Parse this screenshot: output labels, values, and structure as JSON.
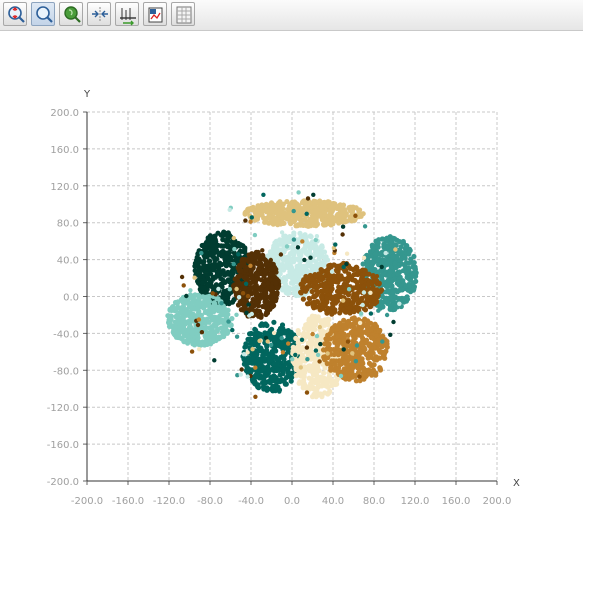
{
  "toolbar": {
    "buttons": [
      {
        "name": "zoom-in-out-icon",
        "active": false
      },
      {
        "name": "zoom-icon",
        "active": true
      },
      {
        "name": "pan-icon",
        "active": false
      },
      {
        "name": "fit-icon",
        "active": false
      },
      {
        "name": "axis-settings-icon",
        "active": false
      },
      {
        "name": "export-icon",
        "active": false
      },
      {
        "name": "grid-toggle-icon",
        "active": false
      }
    ]
  },
  "chart_data": {
    "type": "scatter",
    "xlabel": "X",
    "ylabel": "Y",
    "xlim": [
      -200,
      200
    ],
    "ylim": [
      -200,
      200
    ],
    "xticks": [
      "-200.0",
      "-160.0",
      "-120.0",
      "-80.0",
      "-40.0",
      "0.0",
      "40.0",
      "80.0",
      "120.0",
      "160.0",
      "200.0"
    ],
    "yticks": [
      "200.0",
      "160.0",
      "120.0",
      "80.0",
      "40.0",
      "0.0",
      "-40.0",
      "-80.0",
      "-120.0",
      "-160.0",
      "-200.0"
    ],
    "grid": true,
    "legend": "none",
    "series": [
      {
        "color": "#dfc27d",
        "center": [
          12,
          90
        ],
        "spread": [
          58,
          14
        ],
        "count": 420
      },
      {
        "color": "#c7eae5",
        "center": [
          5,
          35
        ],
        "spread": [
          30,
          34
        ],
        "count": 380
      },
      {
        "color": "#35978f",
        "center": [
          95,
          25
        ],
        "spread": [
          27,
          40
        ],
        "count": 380
      },
      {
        "color": "#003c30",
        "center": [
          -68,
          30
        ],
        "spread": [
          27,
          40
        ],
        "count": 380
      },
      {
        "color": "#543005",
        "center": [
          -35,
          12
        ],
        "spread": [
          22,
          36
        ],
        "count": 340
      },
      {
        "color": "#8c510a",
        "center": [
          48,
          8
        ],
        "spread": [
          40,
          28
        ],
        "count": 380
      },
      {
        "color": "#80cdc1",
        "center": [
          -90,
          -25
        ],
        "spread": [
          32,
          28
        ],
        "count": 360
      },
      {
        "color": "#01665e",
        "center": [
          -20,
          -65
        ],
        "spread": [
          28,
          38
        ],
        "count": 380
      },
      {
        "color": "#f6e8c3",
        "center": [
          25,
          -65
        ],
        "spread": [
          25,
          45
        ],
        "count": 360
      },
      {
        "color": "#bf812d",
        "center": [
          62,
          -58
        ],
        "spread": [
          32,
          35
        ],
        "count": 380
      }
    ]
  }
}
